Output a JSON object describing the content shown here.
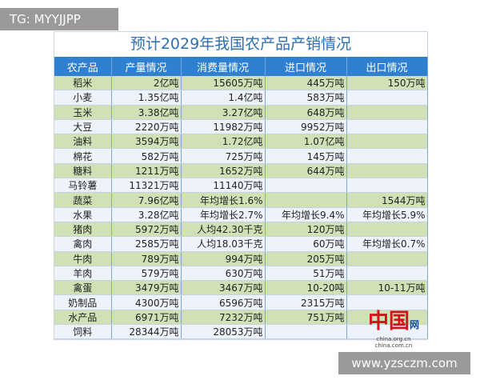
{
  "watermark_top": "TG: MYYJJPP",
  "watermark_bottom": "www.yzsczm.com",
  "title": "预计2029年我国农产品产销情况",
  "headers": [
    "农产品",
    "产量情况",
    "消费量情况",
    "进口情况",
    "出口情况"
  ],
  "rows": [
    [
      "稻米",
      "2亿吨",
      "15605万吨",
      "445万吨",
      "150万吨"
    ],
    [
      "小麦",
      "1.35亿吨",
      "1.4亿吨",
      "583万吨",
      ""
    ],
    [
      "玉米",
      "3.38亿吨",
      "3.27亿吨",
      "648万吨",
      ""
    ],
    [
      "大豆",
      "2220万吨",
      "11982万吨",
      "9952万吨",
      ""
    ],
    [
      "油料",
      "3594万吨",
      "1.72亿吨",
      "1.07亿吨",
      ""
    ],
    [
      "棉花",
      "582万吨",
      "725万吨",
      "145万吨",
      ""
    ],
    [
      "糖料",
      "1211万吨",
      "1652万吨",
      "644万吨",
      ""
    ],
    [
      "马铃薯",
      "11321万吨",
      "11140万吨",
      "",
      ""
    ],
    [
      "蔬菜",
      "7.96亿吨",
      "年均增长1.6%",
      "",
      "1544万吨"
    ],
    [
      "水果",
      "3.28亿吨",
      "年均增长2.7%",
      "年均增长9.4%",
      "年均增长5.9%"
    ],
    [
      "猪肉",
      "5972万吨",
      "人均42.30千克",
      "120万吨",
      ""
    ],
    [
      "禽肉",
      "2585万吨",
      "人均18.03千克",
      "60万吨",
      "年均增长0.7%"
    ],
    [
      "牛肉",
      "789万吨",
      "994万吨",
      "205万吨",
      ""
    ],
    [
      "羊肉",
      "579万吨",
      "630万吨",
      "51万吨",
      ""
    ],
    [
      "禽蛋",
      "3479万吨",
      "3467万吨",
      "10-20吨",
      "10-11万吨"
    ],
    [
      "奶制品",
      "4300万吨",
      "6596万吨",
      "2315万吨",
      ""
    ],
    [
      "水产品",
      "6971万吨",
      "7232万吨",
      "751万吨",
      ""
    ],
    [
      "饲料",
      "28344万吨",
      "28053万吨",
      "",
      ""
    ]
  ],
  "logo": {
    "mark": "中国网",
    "url1": "china.org.cn",
    "url2": "china.com.cn"
  },
  "colors": {
    "header": "#2f80d1",
    "row_green": "#cfe1b5",
    "row_light": "#eef3fb",
    "title": "#2f6fb5"
  }
}
